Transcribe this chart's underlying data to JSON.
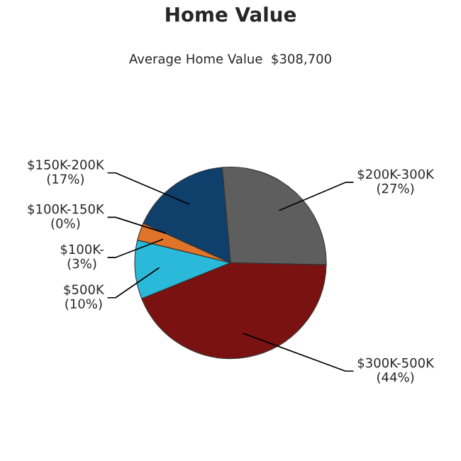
{
  "chart_data": {
    "type": "pie",
    "title": "Home Value",
    "subtitle": "Average Home Value  $308,700",
    "categories": [
      "$200K-300K",
      "$300K-500K",
      "$500K",
      "$100K-",
      "$100K-150K",
      "$150K-200K"
    ],
    "values": [
      27,
      44,
      10,
      3,
      0,
      17
    ],
    "value_labels": [
      "(27%)",
      "(44%)",
      "(10%)",
      "(3%)",
      "(0%)",
      "(17%)"
    ],
    "colors": [
      "#5e5e5e",
      "#7b1212",
      "#2bb9d9",
      "#e07428",
      "#c04010",
      "#0f3f6b"
    ]
  }
}
